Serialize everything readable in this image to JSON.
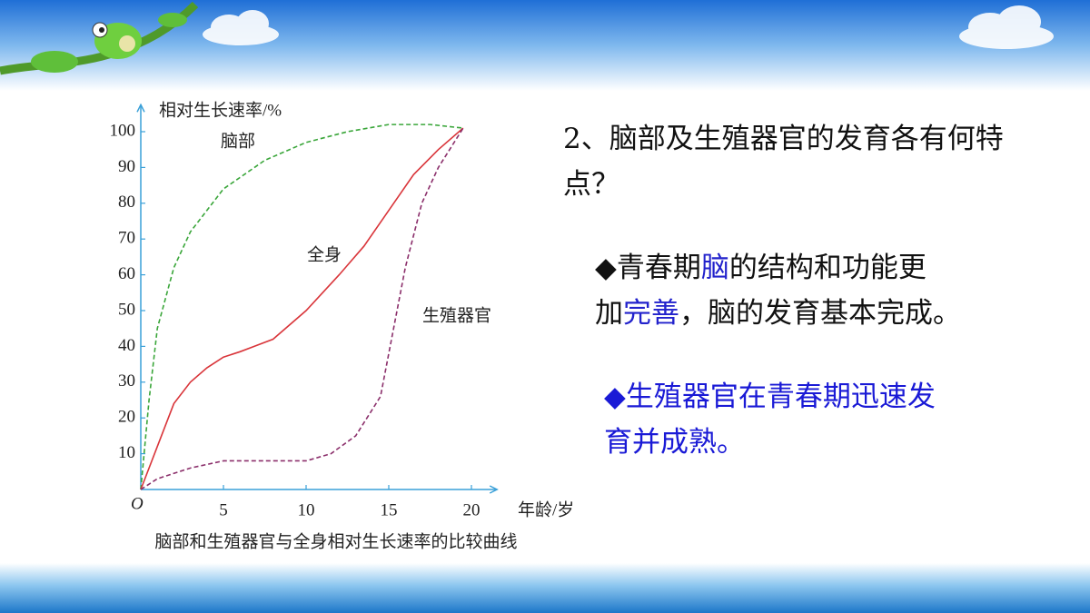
{
  "chart_data": {
    "type": "line",
    "ylabel": "相对生长速率/%",
    "xlabel": "年龄/岁",
    "origin_label": "O",
    "caption": "脑部和生殖器官与全身相对生长速率的比较曲线",
    "xlim": [
      0,
      21
    ],
    "ylim": [
      0,
      105
    ],
    "xticks": [
      5,
      10,
      15,
      20
    ],
    "yticks": [
      10,
      20,
      30,
      40,
      50,
      60,
      70,
      80,
      90,
      100
    ],
    "series": [
      {
        "name": "脑部",
        "color": "#3aa63a",
        "dash": true,
        "x": [
          0,
          0.5,
          1,
          2,
          3,
          5,
          7.5,
          10,
          12.5,
          15,
          17.5,
          19.5
        ],
        "values": [
          0,
          25,
          45,
          62,
          72,
          84,
          92,
          97,
          100,
          102,
          102,
          101
        ]
      },
      {
        "name": "全身",
        "color": "#d9353a",
        "dash": false,
        "x": [
          0,
          1,
          2,
          3,
          4,
          5,
          6,
          8,
          10,
          12,
          13.5,
          15,
          16.5,
          18,
          19.5
        ],
        "values": [
          0,
          12,
          24,
          30,
          34,
          37,
          38.5,
          42,
          50,
          60,
          68,
          78,
          88,
          95,
          101
        ]
      },
      {
        "name": "生殖器官",
        "color": "#8b2f6b",
        "dash": true,
        "x": [
          0,
          1,
          3,
          5,
          7.5,
          10,
          11.5,
          13,
          14.5,
          15.5,
          16,
          17,
          18,
          19.5
        ],
        "values": [
          0,
          3,
          6,
          8,
          8,
          8,
          10,
          15,
          26,
          50,
          62,
          80,
          90,
          101
        ]
      }
    ]
  },
  "question": "2、脑部及生殖器官的发育各有何特点？",
  "bullets": [
    {
      "lines": [
        [
          {
            "text": "◆青春期",
            "color": "#111111"
          },
          {
            "text": "脑",
            "color": "#2222cc"
          },
          {
            "text": "的结构和功能更",
            "color": "#111111"
          }
        ],
        [
          {
            "text": "加",
            "color": "#111111"
          },
          {
            "text": "完善",
            "color": "#2222cc"
          },
          {
            "text": "，脑的发育基本完成。",
            "color": "#111111"
          }
        ]
      ]
    },
    {
      "lines": [
        [
          {
            "text": "◆生殖器官在青春期迅速发",
            "color": "#1a1ad6"
          }
        ],
        [
          {
            "text": "育并成熟。",
            "color": "#1a1ad6"
          }
        ]
      ]
    }
  ]
}
